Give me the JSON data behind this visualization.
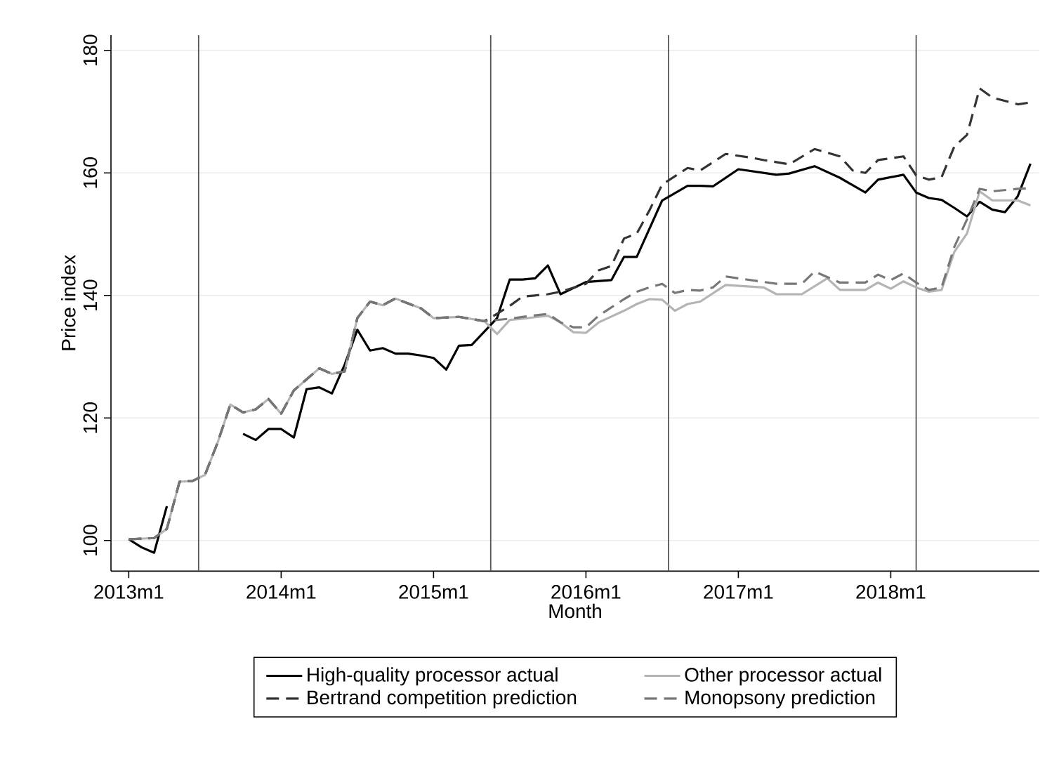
{
  "chart_data": {
    "type": "line",
    "xlabel": "Month",
    "ylabel": "Price index",
    "xlim": [
      "2012-11-19",
      "2018-12-22"
    ],
    "ylim": [
      95,
      182.5
    ],
    "xticks": [
      {
        "value": "2013-01",
        "label": "2013m1"
      },
      {
        "value": "2014-01",
        "label": "2014m1"
      },
      {
        "value": "2015-01",
        "label": "2015m1"
      },
      {
        "value": "2016-01",
        "label": "2016m1"
      },
      {
        "value": "2017-01",
        "label": "2017m1"
      },
      {
        "value": "2018-01",
        "label": "2018m1"
      }
    ],
    "yticks": [
      100,
      120,
      140,
      160,
      180
    ],
    "grid": "y",
    "legend": "bottom",
    "ref_lines": [
      {
        "axis": "x",
        "value": "2013-06-16",
        "color": "#555555"
      },
      {
        "axis": "x",
        "value": "2015-05-16",
        "color": "#555555"
      },
      {
        "axis": "x",
        "value": "2016-07-16",
        "color": "#555555"
      },
      {
        "axis": "x",
        "value": "2018-03-01",
        "color": "#555555"
      }
    ],
    "series": [
      {
        "name": "High-quality processor actual",
        "color": "#000000",
        "line_style": "solid",
        "x": [
          "2013-01",
          "2013-02",
          "2013-03",
          "2013-04",
          "2013-07",
          "2013-10",
          "2013-11",
          "2013-12",
          "2014-01",
          "2014-02",
          "2014-03",
          "2014-04",
          "2014-05",
          "2014-06",
          "2014-07",
          "2014-08",
          "2014-09",
          "2014-10",
          "2014-11",
          "2014-12",
          "2015-01",
          "2015-02",
          "2015-03",
          "2015-04",
          "2015-06",
          "2015-07",
          "2015-08",
          "2015-09",
          "2015-10",
          "2015-11",
          "2016-01",
          "2016-03",
          "2016-04",
          "2016-05",
          "2016-06",
          "2016-07",
          "2016-09",
          "2016-10",
          "2016-11",
          "2017-01",
          "2017-04",
          "2017-05",
          "2017-07",
          "2017-09",
          "2017-11",
          "2017-12",
          "2018-02",
          "2018-03",
          "2018-04",
          "2018-05",
          "2018-06",
          "2018-07",
          "2018-08",
          "2018-09",
          "2018-10",
          "2018-11",
          "2018-12"
        ],
        "values": [
          100.2,
          98.9,
          98,
          105.6,
          null,
          117.4,
          116.4,
          118.2,
          118.2,
          116.8,
          124.7,
          125,
          124,
          128.7,
          134.4,
          131,
          131.4,
          130.5,
          130.5,
          130.2,
          129.8,
          127.9,
          131.8,
          131.9,
          136.3,
          142.6,
          142.6,
          142.8,
          144.9,
          140.2,
          142.2,
          142.5,
          146.3,
          146.3,
          150.9,
          155.5,
          157.9,
          157.9,
          157.8,
          160.6,
          159.7,
          159.9,
          161.1,
          159.2,
          156.8,
          158.9,
          159.7,
          156.8,
          155.9,
          155.6,
          154.3,
          152.9,
          155.3,
          154,
          153.6,
          156.2,
          161.5
        ]
      },
      {
        "name": "Other processor actual",
        "color": "#b4b4b4",
        "line_style": "solid",
        "x": [
          "2013-01",
          "2013-03",
          "2013-04",
          "2013-05",
          "2013-06",
          "2013-07",
          "2013-08",
          "2013-09",
          "2013-10",
          "2013-11",
          "2013-12",
          "2014-01",
          "2014-02",
          "2014-04",
          "2014-05",
          "2014-06",
          "2014-07",
          "2014-08",
          "2014-09",
          "2014-10",
          "2014-12",
          "2015-01",
          "2015-03",
          "2015-05",
          "2015-06",
          "2015-07",
          "2015-08",
          "2015-10",
          "2015-11",
          "2015-12",
          "2016-01",
          "2016-02",
          "2016-04",
          "2016-05",
          "2016-06",
          "2016-07",
          "2016-08",
          "2016-09",
          "2016-10",
          "2016-12",
          "2017-03",
          "2017-04",
          "2017-06",
          "2017-08",
          "2017-09",
          "2017-11",
          "2017-12",
          "2018-01",
          "2018-02",
          "2018-03",
          "2018-04",
          "2018-05",
          "2018-06",
          "2018-07",
          "2018-08",
          "2018-09",
          "2018-11",
          "2018-12"
        ],
        "values": [
          100.2,
          100.4,
          101.9,
          109.6,
          109.7,
          110.7,
          116,
          122.2,
          120.9,
          121.4,
          123.1,
          120.7,
          124.5,
          128.1,
          127.2,
          127.6,
          136.3,
          139,
          138.4,
          139.5,
          137.9,
          136.3,
          136.5,
          135.8,
          133.7,
          136,
          136.2,
          136.7,
          135.6,
          134,
          133.9,
          135.6,
          137.5,
          138.6,
          139.4,
          139.3,
          137.5,
          138.6,
          139,
          141.7,
          141.3,
          140.2,
          140.2,
          142.8,
          140.9,
          140.9,
          142.1,
          141.1,
          142.3,
          141.3,
          140.6,
          140.9,
          147.1,
          150.1,
          157,
          155.5,
          155.5,
          154.7
        ]
      },
      {
        "name": "Bertrand competition prediction",
        "color": "#333333",
        "line_style": "dashed",
        "x": [
          "2013-01",
          "2013-03",
          "2013-04",
          "2013-05",
          "2013-06",
          "2013-07",
          "2013-08",
          "2013-09",
          "2013-10",
          "2013-11",
          "2013-12",
          "2014-01",
          "2014-02",
          "2014-04",
          "2014-05",
          "2014-06",
          "2014-07",
          "2014-08",
          "2014-09",
          "2014-10",
          "2014-12",
          "2015-01",
          "2015-03",
          "2015-05",
          "2015-06",
          "2015-07",
          "2015-08",
          "2015-10",
          "2015-11",
          "2016-01",
          "2016-02",
          "2016-03",
          "2016-04",
          "2016-05",
          "2016-06",
          "2016-07",
          "2016-09",
          "2016-10",
          "2016-12",
          "2017-02",
          "2017-03",
          "2017-05",
          "2017-07",
          "2017-09",
          "2017-10",
          "2017-11",
          "2017-12",
          "2018-02",
          "2018-03",
          "2018-04",
          "2018-05",
          "2018-06",
          "2018-07",
          "2018-08",
          "2018-09",
          "2018-11",
          "2018-12"
        ],
        "values": [
          100.2,
          100.4,
          101.9,
          109.6,
          109.7,
          110.7,
          116,
          122.2,
          120.9,
          121.4,
          123.1,
          120.7,
          124.5,
          128.1,
          127.2,
          127.6,
          136.3,
          139,
          138.4,
          139.5,
          137.9,
          136.3,
          136.5,
          135.8,
          137,
          138.3,
          139.8,
          140.2,
          140.6,
          141.9,
          144.1,
          144.8,
          149.3,
          150.1,
          153.9,
          158.1,
          160.8,
          160.4,
          163.1,
          162.5,
          162.1,
          161.4,
          163.9,
          162.7,
          160.4,
          160,
          162.1,
          162.7,
          159.6,
          158.9,
          159.3,
          164.3,
          166.2,
          173.8,
          172.3,
          171.2,
          171.5
        ]
      },
      {
        "name": "Monopsony prediction",
        "color": "#777777",
        "line_style": "dashed",
        "x": [
          "2013-01",
          "2013-03",
          "2013-04",
          "2013-05",
          "2013-06",
          "2013-07",
          "2013-08",
          "2013-09",
          "2013-10",
          "2013-11",
          "2013-12",
          "2014-01",
          "2014-02",
          "2014-04",
          "2014-05",
          "2014-06",
          "2014-07",
          "2014-08",
          "2014-09",
          "2014-10",
          "2014-12",
          "2015-01",
          "2015-03",
          "2015-05",
          "2015-06",
          "2015-07",
          "2015-08",
          "2015-10",
          "2015-11",
          "2015-12",
          "2016-01",
          "2016-02",
          "2016-04",
          "2016-05",
          "2016-06",
          "2016-07",
          "2016-08",
          "2016-09",
          "2016-10",
          "2016-11",
          "2016-12",
          "2017-02",
          "2017-04",
          "2017-06",
          "2017-07",
          "2017-09",
          "2017-11",
          "2017-12",
          "2018-01",
          "2018-02",
          "2018-03",
          "2018-04",
          "2018-05",
          "2018-06",
          "2018-07",
          "2018-08",
          "2018-09",
          "2018-11",
          "2018-12"
        ],
        "values": [
          100.2,
          100.4,
          101.9,
          109.6,
          109.7,
          110.7,
          116,
          122.2,
          120.9,
          121.4,
          123.1,
          120.7,
          124.5,
          128.1,
          127.2,
          127.6,
          136.3,
          139,
          138.4,
          139.5,
          137.9,
          136.3,
          136.5,
          135.8,
          136,
          136.2,
          136.5,
          137,
          135.6,
          134.8,
          134.8,
          136.7,
          139.4,
          140.6,
          141.3,
          141.9,
          140.4,
          140.9,
          140.8,
          141.3,
          143.1,
          142.5,
          141.9,
          141.9,
          143.9,
          142.1,
          142.1,
          143.4,
          142.5,
          143.6,
          142.1,
          140.9,
          141.3,
          147.9,
          152.4,
          157.4,
          157,
          157.4,
          157.5
        ]
      }
    ]
  }
}
